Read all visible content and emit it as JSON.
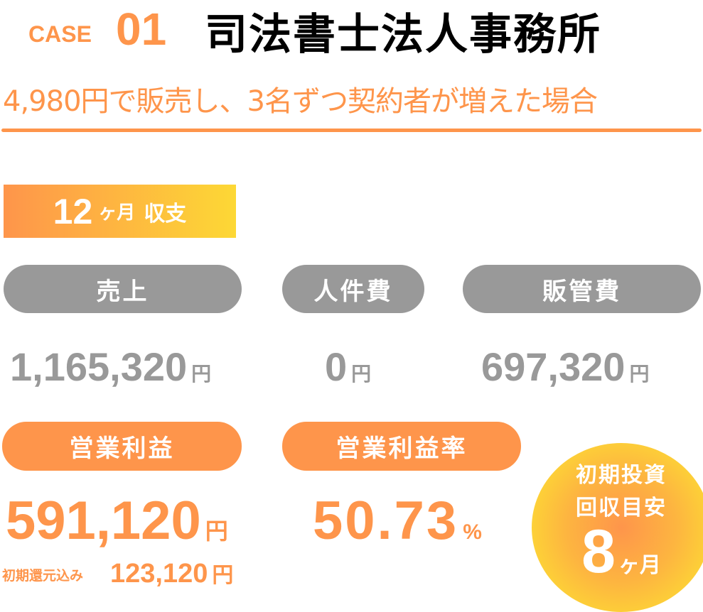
{
  "header": {
    "case_label": "CASE",
    "case_number": "01",
    "title": "司法書士法人事務所",
    "subtitle": "4,980円で販売し、3名ずつ契約者が増えた場合"
  },
  "period_badge": {
    "number": "12",
    "unit": "ヶ月",
    "label": "収支"
  },
  "metrics": [
    {
      "label": "売上",
      "value": "1,165,320",
      "unit": "円"
    },
    {
      "label": "人件費",
      "value": "0",
      "unit": "円"
    },
    {
      "label": "販管費",
      "value": "697,320",
      "unit": "円"
    }
  ],
  "profit": {
    "label": "営業利益",
    "value": "591,120",
    "unit": "円",
    "sub_label": "初期還元込み",
    "sub_value": "123,120",
    "sub_unit": "円"
  },
  "margin": {
    "label": "営業利益率",
    "value": "50.73",
    "unit": "%"
  },
  "payback": {
    "line1": "初期投資",
    "line2": "回収目安",
    "value": "8",
    "unit": "ヶ月"
  },
  "colors": {
    "accent": "#fe954b",
    "gray": "#999999",
    "yellow": "#fdd835"
  }
}
